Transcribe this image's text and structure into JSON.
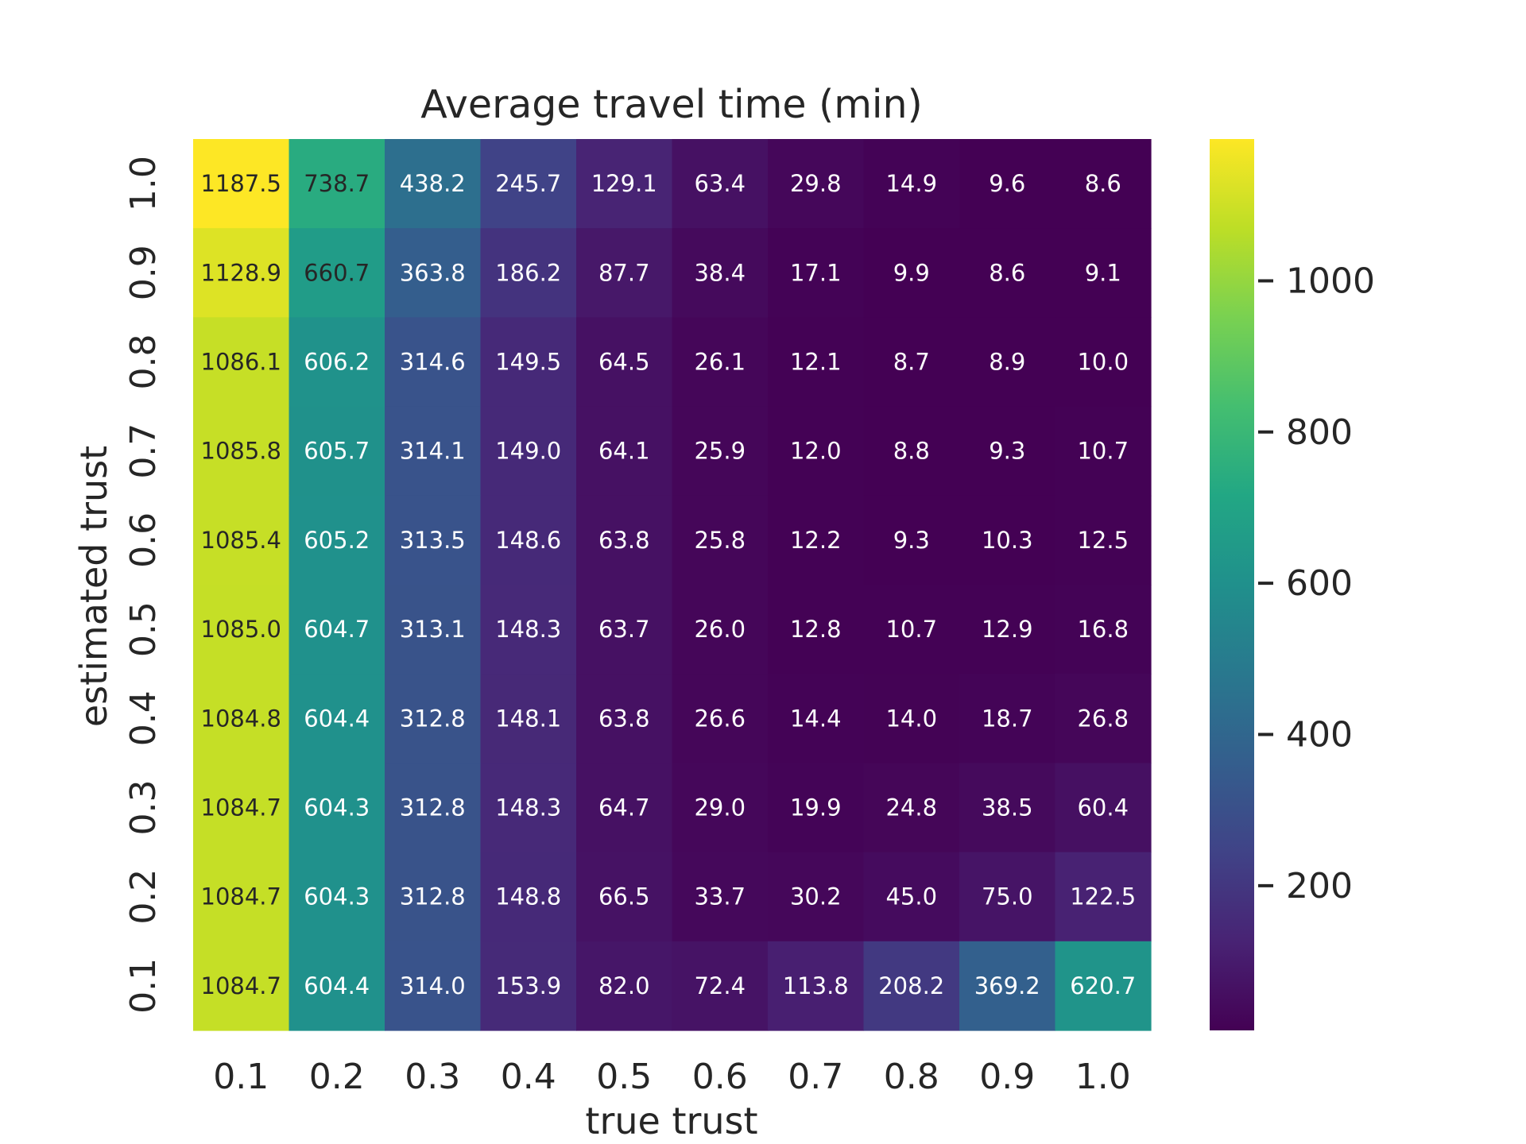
{
  "chart_data": {
    "type": "heatmap",
    "title": "Average travel time (min)",
    "xlabel": "true trust",
    "ylabel": "estimated trust",
    "x_categories": [
      "0.1",
      "0.2",
      "0.3",
      "0.4",
      "0.5",
      "0.6",
      "0.7",
      "0.8",
      "0.9",
      "1.0"
    ],
    "y_categories": [
      "1.0",
      "0.9",
      "0.8",
      "0.7",
      "0.6",
      "0.5",
      "0.4",
      "0.3",
      "0.2",
      "0.1"
    ],
    "values": [
      [
        1187.5,
        738.7,
        438.2,
        245.7,
        129.1,
        63.4,
        29.8,
        14.9,
        9.6,
        8.6
      ],
      [
        1128.9,
        660.7,
        363.8,
        186.2,
        87.7,
        38.4,
        17.1,
        9.9,
        8.6,
        9.1
      ],
      [
        1086.1,
        606.2,
        314.6,
        149.5,
        64.5,
        26.1,
        12.1,
        8.7,
        8.9,
        10.0
      ],
      [
        1085.8,
        605.7,
        314.1,
        149.0,
        64.1,
        25.9,
        12.0,
        8.8,
        9.3,
        10.7
      ],
      [
        1085.4,
        605.2,
        313.5,
        148.6,
        63.8,
        25.8,
        12.2,
        9.3,
        10.3,
        12.5
      ],
      [
        1085.0,
        604.7,
        313.1,
        148.3,
        63.7,
        26.0,
        12.8,
        10.7,
        12.9,
        16.8
      ],
      [
        1084.8,
        604.4,
        312.8,
        148.1,
        63.8,
        26.6,
        14.4,
        14.0,
        18.7,
        26.8
      ],
      [
        1084.7,
        604.3,
        312.8,
        148.3,
        64.7,
        29.0,
        19.9,
        24.8,
        38.5,
        60.4
      ],
      [
        1084.7,
        604.3,
        312.8,
        148.8,
        66.5,
        33.7,
        30.2,
        45.0,
        75.0,
        122.5
      ],
      [
        1084.7,
        604.4,
        314.0,
        153.9,
        82.0,
        72.4,
        113.8,
        208.2,
        369.2,
        620.7
      ]
    ],
    "value_format_decimals": 1,
    "colormap": "viridis",
    "vmin": 8.6,
    "vmax": 1187.5,
    "colorbar": {
      "ticks": [
        200,
        400,
        600,
        800,
        1000
      ],
      "tick_labels": [
        "200",
        "400",
        "600",
        "800",
        "1000"
      ]
    },
    "annotations_on_cells": true,
    "grid": false
  }
}
